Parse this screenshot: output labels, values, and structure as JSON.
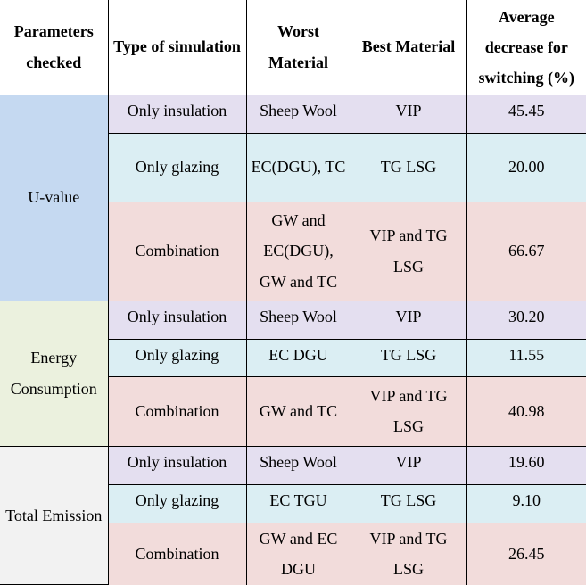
{
  "headers": [
    "Parameters checked",
    "Type of simulation",
    "Worst Material",
    "Best Material",
    "Average decrease for switching (%)"
  ],
  "groups": [
    {
      "parameter": "U-value",
      "rows": [
        {
          "type": "Only insulation",
          "worst": "Sheep Wool",
          "best": "VIP",
          "avg": "45.45"
        },
        {
          "type": "Only glazing",
          "worst": "EC(DGU), TC",
          "best": "TG LSG",
          "avg": "20.00"
        },
        {
          "type": "Combination",
          "worst": "GW and EC(DGU), GW and TC",
          "best": "VIP and TG LSG",
          "avg": "66.67"
        }
      ]
    },
    {
      "parameter": "Energy Consumption",
      "rows": [
        {
          "type": "Only insulation",
          "worst": "Sheep Wool",
          "best": "VIP",
          "avg": "30.20"
        },
        {
          "type": "Only glazing",
          "worst": "EC DGU",
          "best": "TG LSG",
          "avg": "11.55"
        },
        {
          "type": "Combination",
          "worst": "GW and TC",
          "best": "VIP and TG LSG",
          "avg": "40.98"
        }
      ]
    },
    {
      "parameter": "Total Emission",
      "rows": [
        {
          "type": "Only insulation",
          "worst": "Sheep Wool",
          "best": "VIP",
          "avg": "19.60"
        },
        {
          "type": "Only glazing",
          "worst": "EC TGU",
          "best": "TG LSG",
          "avg": "9.10"
        },
        {
          "type": "Combination",
          "worst": "GW and EC DGU",
          "best": "VIP and TG LSG",
          "avg": "26.45"
        }
      ]
    }
  ],
  "colors": {
    "insulation_row": "#e4dff0",
    "glazing_row": "#dbeef3",
    "combination_row": "#f2dcdb",
    "u_value_cell": "#c5d9f1",
    "energy_cell": "#ebf1de",
    "emission_cell": "#f2f2f2"
  }
}
